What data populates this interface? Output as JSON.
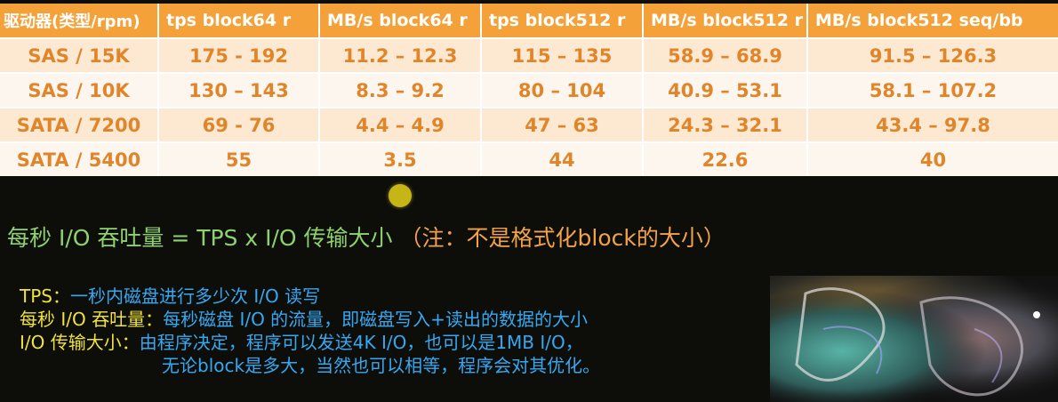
{
  "table": {
    "headers": [
      "驱动器(类型/rpm)",
      "tps block64 r",
      "MB/s block64 r",
      "tps block512 r",
      "MB/s block512 r",
      "MB/s block512 seq/bb"
    ],
    "rows": [
      [
        "SAS / 15K",
        "175 - 192",
        "11.2 – 12.3",
        "115 – 135",
        "58.9 – 68.9",
        "91.5 – 126.3"
      ],
      [
        "SAS / 10K",
        "130 – 143",
        "8.3 – 9.2",
        "80 – 104",
        "40.9 – 53.1",
        "58.1 – 107.2"
      ],
      [
        "SATA / 7200",
        "69 - 76",
        "4.4 – 4.9",
        "47 – 63",
        "24.3 – 32.1",
        "43.4 – 97.8"
      ],
      [
        "SATA / 5400",
        "55",
        "3.5",
        "44",
        "22.6",
        "40"
      ]
    ]
  },
  "formula": {
    "main": "每秒 I/O 吞吐量 = TPS x I/O 传输大小",
    "note": "（注：不是格式化block的大小）"
  },
  "definitions": [
    {
      "term": "TPS：",
      "desc": "一秒内磁盘进行多少次 I/O 读写"
    },
    {
      "term": "每秒 I/O 吞吐量：",
      "desc": "每秒磁盘 I/O 的流量，即磁盘写入+读出的数据的大小"
    },
    {
      "term": "I/O 传输大小：",
      "desc": "由程序决定，程序可以发送4K I/O，也可以是1MB I/O，"
    }
  ],
  "definition_continuation": "无论block是多大，当然也可以相等，程序会对其优化。",
  "colors": {
    "header_bg": "#f5a13a",
    "cell_text": "#e0852a",
    "formula": "#8fd16e",
    "note": "#f2a24a",
    "term": "#f0e33a",
    "desc": "#36a8f2"
  }
}
